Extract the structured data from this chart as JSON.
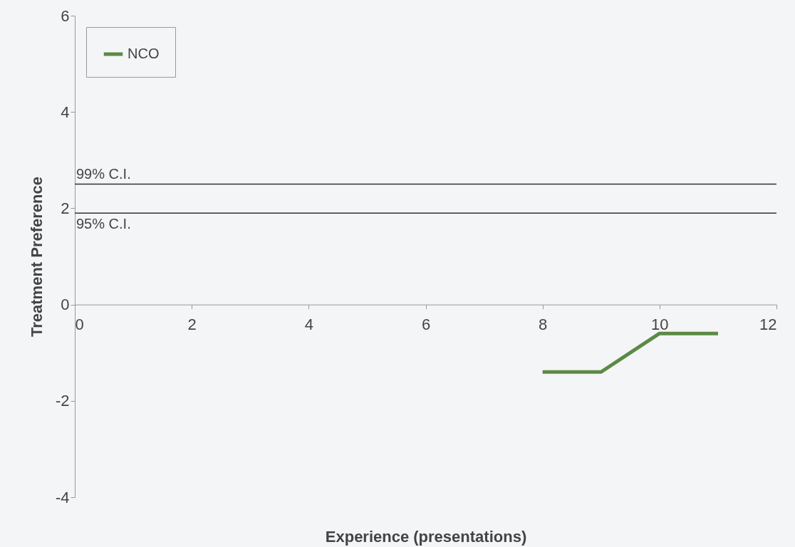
{
  "chart_data": {
    "type": "line",
    "xlabel": "Experience (presentations)",
    "ylabel": "Treatment Preference",
    "x": [
      8,
      9,
      10,
      11
    ],
    "series": [
      {
        "name": "NCO",
        "color": "#5b8a45",
        "values": [
          -1.4,
          -1.4,
          -0.6,
          -0.6
        ]
      }
    ],
    "xlim": [
      0,
      12
    ],
    "xticks": [
      0,
      2,
      4,
      6,
      8,
      10,
      12
    ],
    "ylim": [
      -4,
      6
    ],
    "yticks": [
      -4,
      -2,
      0,
      2,
      4,
      6
    ],
    "ref_lines": [
      {
        "axis": "y",
        "value": 2.5,
        "label": "99% C.I.",
        "color": "#333333"
      },
      {
        "axis": "y",
        "value": 1.9,
        "label": "95% C.I.",
        "color": "#333333"
      }
    ],
    "grid": false,
    "legend": "top left",
    "marker": "none",
    "line_style": "solid"
  }
}
